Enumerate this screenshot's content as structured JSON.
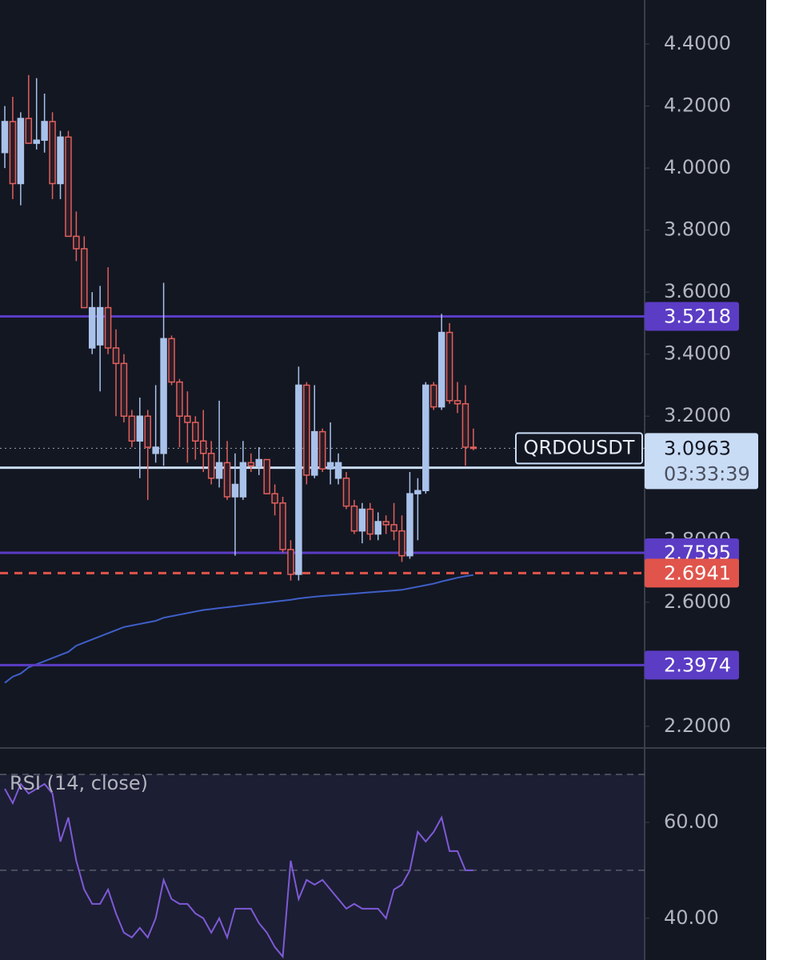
{
  "chart_data": [
    {
      "type": "candlestick",
      "symbol": "QRDOUSDT",
      "countdown": "03:33:39",
      "ylim": [
        2.13,
        4.542
      ],
      "yticks": [
        {
          "value": 2.2,
          "label": "2.2000"
        },
        {
          "value": 2.4,
          "label": "2.4000"
        },
        {
          "value": 2.6,
          "label": "2.6000"
        },
        {
          "value": 2.8,
          "label": "2.8000"
        },
        {
          "value": 3.0,
          "label": "3.0000"
        },
        {
          "value": 3.2,
          "label": "3.2000"
        },
        {
          "value": 3.4,
          "label": "3.4000"
        },
        {
          "value": 3.6,
          "label": "3.6000"
        },
        {
          "value": 3.8,
          "label": "3.8000"
        },
        {
          "value": 4.0,
          "label": "4.0000"
        },
        {
          "value": 4.2,
          "label": "4.2000"
        },
        {
          "value": 4.4,
          "label": "4.4000"
        }
      ],
      "up_color": "#a9c2ea",
      "down_color": "#e0605c",
      "ohlc": [
        [
          4.05,
          4.2,
          4.0,
          4.15
        ],
        [
          4.15,
          4.23,
          3.9,
          3.95
        ],
        [
          3.95,
          4.18,
          3.88,
          4.16
        ],
        [
          4.16,
          4.3,
          4.08,
          4.08
        ],
        [
          4.08,
          4.29,
          4.06,
          4.09
        ],
        [
          4.09,
          4.24,
          4.05,
          4.15
        ],
        [
          4.15,
          4.18,
          3.9,
          3.95
        ],
        [
          3.95,
          4.12,
          3.9,
          4.1
        ],
        [
          4.1,
          4.12,
          3.78,
          3.78
        ],
        [
          3.78,
          3.86,
          3.7,
          3.74
        ],
        [
          3.74,
          3.78,
          3.55,
          3.55
        ],
        [
          3.42,
          3.6,
          3.4,
          3.55
        ],
        [
          3.43,
          3.62,
          3.28,
          3.55
        ],
        [
          3.55,
          3.68,
          3.4,
          3.42
        ],
        [
          3.42,
          3.48,
          3.2,
          3.37
        ],
        [
          3.37,
          3.4,
          3.18,
          3.2
        ],
        [
          3.2,
          3.22,
          3.1,
          3.12
        ],
        [
          3.12,
          3.26,
          3.0,
          3.2
        ],
        [
          3.2,
          3.22,
          2.93,
          3.1
        ],
        [
          3.08,
          3.3,
          3.05,
          3.1
        ],
        [
          3.08,
          3.63,
          3.04,
          3.45
        ],
        [
          3.45,
          3.46,
          3.3,
          3.31
        ],
        [
          3.31,
          3.32,
          3.1,
          3.2
        ],
        [
          3.2,
          3.28,
          3.05,
          3.18
        ],
        [
          3.18,
          3.2,
          3.06,
          3.12
        ],
        [
          3.12,
          3.22,
          3.02,
          3.08
        ],
        [
          3.08,
          3.12,
          2.98,
          3.0
        ],
        [
          3.0,
          3.25,
          2.97,
          3.05
        ],
        [
          3.05,
          3.12,
          2.93,
          2.94
        ],
        [
          2.94,
          3.08,
          2.75,
          2.98
        ],
        [
          2.94,
          3.12,
          2.93,
          3.05
        ],
        [
          3.05,
          3.08,
          3.02,
          3.04
        ],
        [
          3.04,
          3.1,
          3.01,
          3.06
        ],
        [
          3.06,
          3.06,
          2.95,
          2.95
        ],
        [
          2.95,
          2.98,
          2.88,
          2.92
        ],
        [
          2.92,
          2.94,
          2.76,
          2.77
        ],
        [
          2.77,
          2.8,
          2.67,
          2.69
        ],
        [
          2.69,
          3.36,
          2.67,
          3.3
        ],
        [
          3.3,
          3.31,
          2.98,
          3.01
        ],
        [
          3.01,
          3.3,
          3.0,
          3.15
        ],
        [
          3.15,
          3.16,
          3.02,
          3.03
        ],
        [
          3.03,
          3.18,
          2.98,
          3.05
        ],
        [
          3.0,
          3.08,
          2.98,
          3.05
        ],
        [
          3.0,
          3.02,
          2.9,
          2.91
        ],
        [
          2.91,
          2.93,
          2.82,
          2.83
        ],
        [
          2.83,
          2.92,
          2.79,
          2.9
        ],
        [
          2.9,
          2.92,
          2.8,
          2.82
        ],
        [
          2.82,
          2.89,
          2.8,
          2.86
        ],
        [
          2.86,
          2.88,
          2.82,
          2.85
        ],
        [
          2.85,
          2.92,
          2.8,
          2.83
        ],
        [
          2.83,
          2.88,
          2.73,
          2.75
        ],
        [
          2.75,
          3.02,
          2.74,
          2.95
        ],
        [
          2.95,
          3.0,
          2.8,
          2.96
        ],
        [
          2.96,
          3.31,
          2.95,
          3.3
        ],
        [
          3.3,
          3.31,
          3.22,
          3.23
        ],
        [
          3.23,
          3.53,
          3.22,
          3.47
        ],
        [
          3.47,
          3.5,
          3.24,
          3.25
        ],
        [
          3.25,
          3.31,
          3.21,
          3.24
        ],
        [
          3.24,
          3.3,
          3.04,
          3.1
        ],
        [
          3.1,
          3.16,
          3.09,
          3.0963
        ]
      ],
      "ma_color": "#3f5fc8",
      "ma_values": [
        2.34,
        2.36,
        2.37,
        2.39,
        2.4,
        2.41,
        2.42,
        2.43,
        2.44,
        2.46,
        2.47,
        2.48,
        2.49,
        2.5,
        2.51,
        2.52,
        2.525,
        2.53,
        2.535,
        2.54,
        2.55,
        2.555,
        2.56,
        2.565,
        2.57,
        2.575,
        2.578,
        2.581,
        2.584,
        2.587,
        2.59,
        2.593,
        2.596,
        2.599,
        2.602,
        2.605,
        2.608,
        2.612,
        2.615,
        2.618,
        2.62,
        2.622,
        2.624,
        2.626,
        2.628,
        2.63,
        2.632,
        2.634,
        2.636,
        2.638,
        2.64,
        2.645,
        2.65,
        2.655,
        2.66,
        2.667,
        2.673,
        2.679,
        2.684,
        2.688
      ],
      "price_lines": [
        {
          "value": 3.5218,
          "color": "#5b3cc4",
          "style": "solid"
        },
        {
          "value": 3.0337,
          "color": "#c9dcf5",
          "style": "solid"
        },
        {
          "value": 2.7595,
          "color": "#5b3cc4",
          "style": "solid"
        },
        {
          "value": 2.6941,
          "color": "#e0544b",
          "style": "dashed"
        },
        {
          "value": 2.3974,
          "color": "#5b3cc4",
          "style": "solid"
        }
      ],
      "last_price": 3.0963
    },
    {
      "type": "line",
      "title": "RSI (14, close)",
      "color": "#7e5ad6",
      "ylim": [
        31.3,
        75
      ],
      "yticks": [
        {
          "value": 40,
          "label": "40.00"
        },
        {
          "value": 60,
          "label": "60.00"
        }
      ],
      "bands": [
        70,
        50
      ],
      "values": [
        67,
        64,
        68,
        66,
        67,
        68,
        66,
        56,
        61,
        52,
        46,
        43,
        43,
        46,
        41,
        37,
        36,
        38,
        36,
        40,
        48,
        44,
        43,
        43,
        41,
        40,
        37,
        40,
        36,
        42,
        42,
        42,
        39,
        37,
        34,
        32,
        52,
        44,
        48,
        47,
        48,
        46,
        44,
        42,
        43,
        42,
        42,
        42,
        40,
        46,
        47,
        50,
        58,
        56,
        58,
        61,
        54,
        54,
        50,
        50
      ]
    }
  ]
}
